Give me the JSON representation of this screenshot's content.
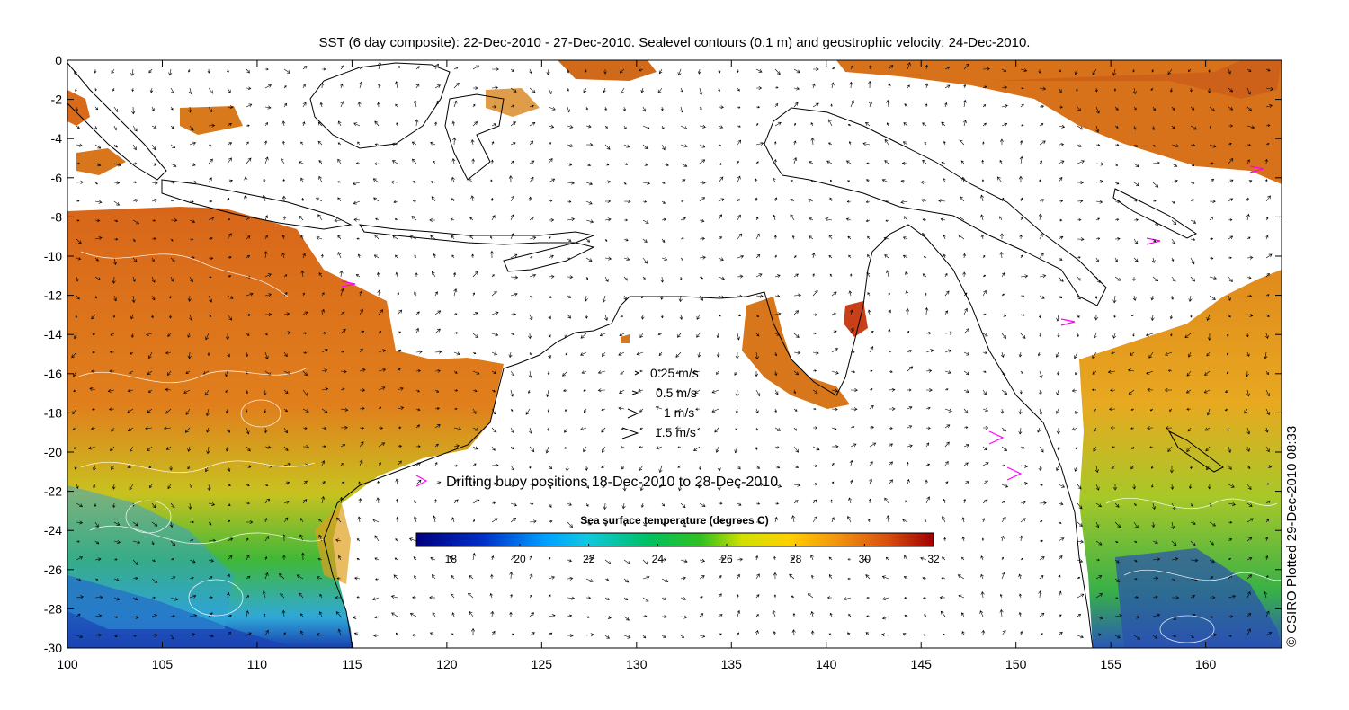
{
  "map": {
    "title": "SST (6 day composite): 22-Dec-2010 - 27-Dec-2010. Sealevel contours (0.1 m) and geostrophic velocity: 24-Dec-2010.",
    "credit": "© CSIRO Plotted 29-Dec-2010 08:33",
    "lon_range": [
      100,
      164
    ],
    "lat_range": [
      -30,
      0
    ],
    "x_ticks": [
      "100",
      "105",
      "110",
      "115",
      "120",
      "125",
      "130",
      "135",
      "140",
      "145",
      "150",
      "155",
      "160"
    ],
    "y_ticks": [
      "0",
      "-2",
      "-4",
      "-6",
      "-8",
      "-10",
      "-12",
      "-14",
      "-16",
      "-18",
      "-20",
      "-22",
      "-24",
      "-26",
      "-28",
      "-30"
    ],
    "velocity_legend": [
      "0.25 m/s",
      "0.5 m/s",
      "1 m/s",
      "1.5 m/s"
    ],
    "buoy_legend": "Drifting buoy positions 18-Dec-2010 to 28-Dec-2010",
    "colorbar": {
      "title": "Sea surface temperature (degrees C)",
      "range": [
        17,
        32
      ],
      "labels": [
        "18",
        "20",
        "22",
        "24",
        "26",
        "28",
        "30",
        "32"
      ]
    },
    "colors": {
      "buoy": "#ff00ff",
      "land": "#ffffff",
      "coast": "#000000",
      "contour": "#ffffff"
    }
  }
}
